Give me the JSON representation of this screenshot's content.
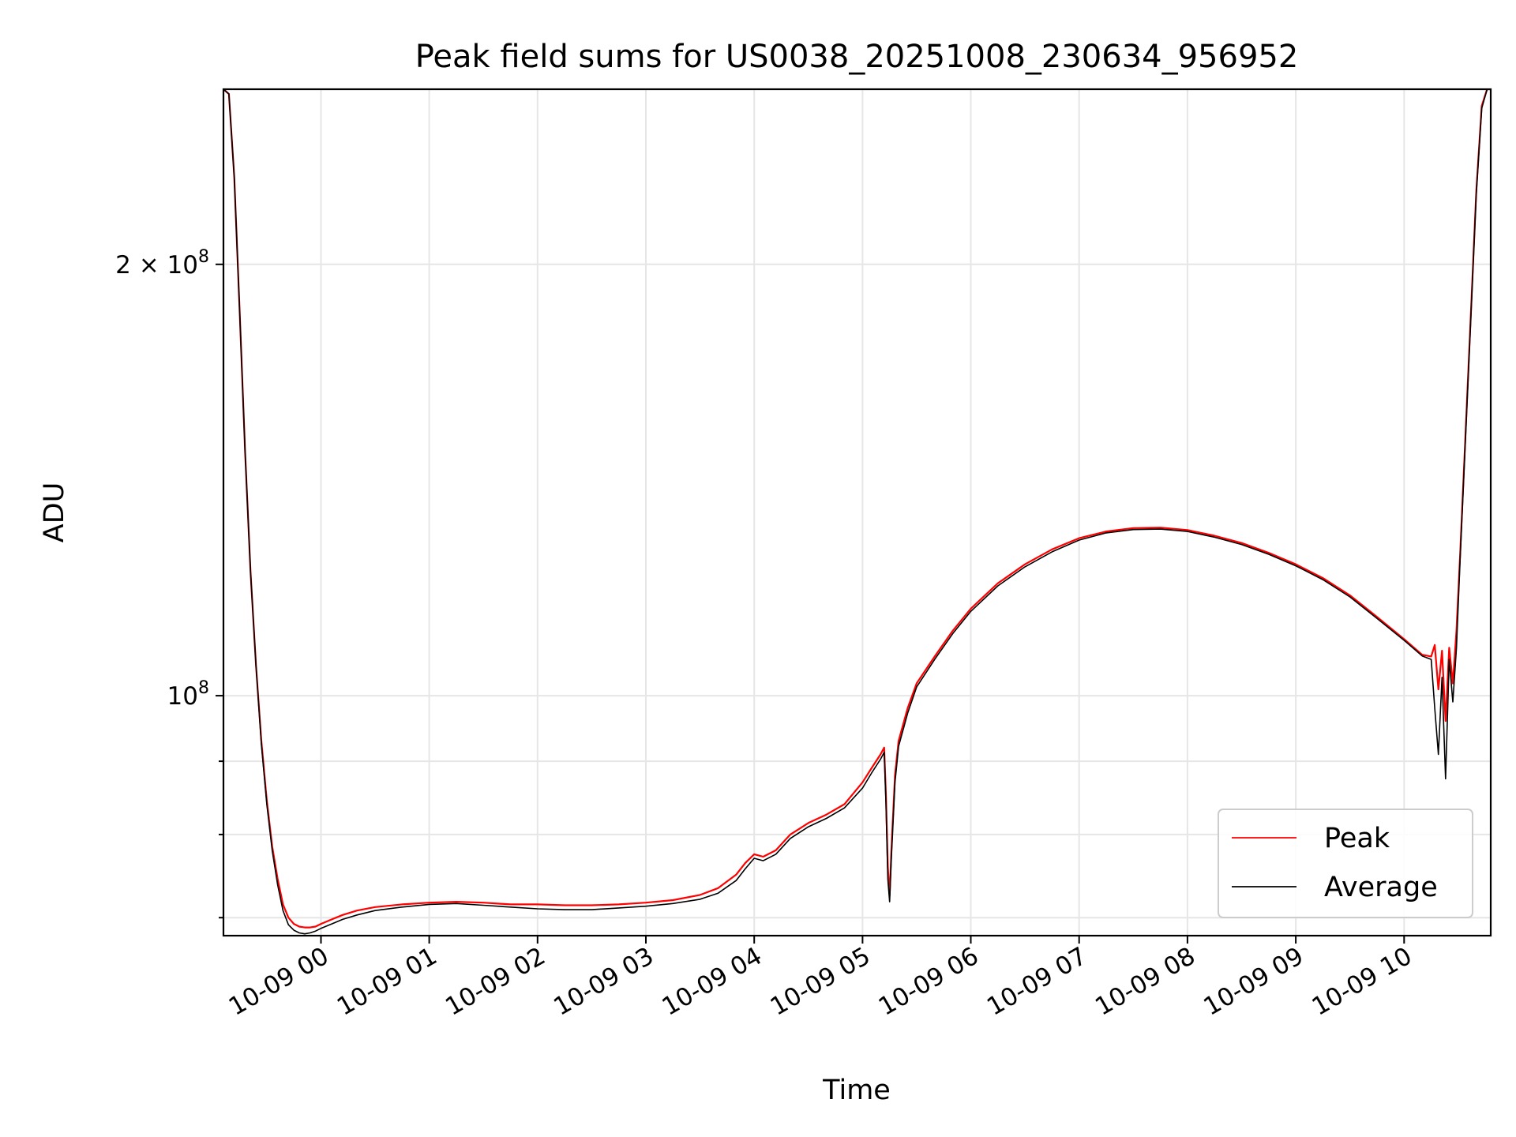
{
  "chart_data": {
    "type": "line",
    "title": "Peak field sums for US0038_20251008_230634_956952",
    "xlabel": "Time",
    "ylabel": "ADU",
    "y_scale": "log",
    "ylim": [
      68000000,
      265000000
    ],
    "xlim": [
      "2025-10-08 23:06",
      "2025-10-09 10:48"
    ],
    "grid": true,
    "legend_position": "bottom-right",
    "x_ticks": [
      "2025-10-09 00:00",
      "2025-10-09 01:00",
      "2025-10-09 02:00",
      "2025-10-09 03:00",
      "2025-10-09 04:00",
      "2025-10-09 05:00",
      "2025-10-09 06:00",
      "2025-10-09 07:00",
      "2025-10-09 08:00",
      "2025-10-09 09:00",
      "2025-10-09 10:00"
    ],
    "x_tick_labels": [
      "10-09 00",
      "10-09 01",
      "10-09 02",
      "10-09 03",
      "10-09 04",
      "10-09 05",
      "10-09 06",
      "10-09 07",
      "10-09 08",
      "10-09 09",
      "10-09 10"
    ],
    "y_ticks": [
      100000000,
      200000000
    ],
    "y_tick_labels": [
      {
        "base": "10",
        "exp": "8",
        "coef": ""
      },
      {
        "base": "10",
        "exp": "8",
        "coef": "2 × "
      }
    ],
    "y_minor_ticks": [
      70000000,
      80000000,
      90000000
    ],
    "x": [
      "2025-10-08 23:06",
      "2025-10-08 23:09",
      "2025-10-08 23:12",
      "2025-10-08 23:15",
      "2025-10-08 23:18",
      "2025-10-08 23:21",
      "2025-10-08 23:24",
      "2025-10-08 23:27",
      "2025-10-08 23:30",
      "2025-10-08 23:33",
      "2025-10-08 23:36",
      "2025-10-08 23:39",
      "2025-10-08 23:42",
      "2025-10-08 23:45",
      "2025-10-08 23:48",
      "2025-10-08 23:51",
      "2025-10-08 23:54",
      "2025-10-08 23:57",
      "2025-10-09 00:00",
      "2025-10-09 00:06",
      "2025-10-09 00:12",
      "2025-10-09 00:20",
      "2025-10-09 00:30",
      "2025-10-09 00:45",
      "2025-10-09 01:00",
      "2025-10-09 01:15",
      "2025-10-09 01:30",
      "2025-10-09 01:45",
      "2025-10-09 02:00",
      "2025-10-09 02:15",
      "2025-10-09 02:30",
      "2025-10-09 02:45",
      "2025-10-09 03:00",
      "2025-10-09 03:15",
      "2025-10-09 03:30",
      "2025-10-09 03:40",
      "2025-10-09 03:50",
      "2025-10-09 03:55",
      "2025-10-09 04:00",
      "2025-10-09 04:05",
      "2025-10-09 04:12",
      "2025-10-09 04:20",
      "2025-10-09 04:30",
      "2025-10-09 04:40",
      "2025-10-09 04:50",
      "2025-10-09 05:00",
      "2025-10-09 05:05",
      "2025-10-09 05:10",
      "2025-10-09 05:12",
      "2025-10-09 05:13",
      "2025-10-09 05:14",
      "2025-10-09 05:15",
      "2025-10-09 05:16",
      "2025-10-09 05:18",
      "2025-10-09 05:20",
      "2025-10-09 05:25",
      "2025-10-09 05:30",
      "2025-10-09 05:40",
      "2025-10-09 05:50",
      "2025-10-09 06:00",
      "2025-10-09 06:15",
      "2025-10-09 06:30",
      "2025-10-09 06:45",
      "2025-10-09 07:00",
      "2025-10-09 07:15",
      "2025-10-09 07:30",
      "2025-10-09 07:45",
      "2025-10-09 08:00",
      "2025-10-09 08:15",
      "2025-10-09 08:30",
      "2025-10-09 08:45",
      "2025-10-09 09:00",
      "2025-10-09 09:15",
      "2025-10-09 09:30",
      "2025-10-09 09:45",
      "2025-10-09 10:00",
      "2025-10-09 10:10",
      "2025-10-09 10:15",
      "2025-10-09 10:17",
      "2025-10-09 10:19",
      "2025-10-09 10:21",
      "2025-10-09 10:23",
      "2025-10-09 10:25",
      "2025-10-09 10:27",
      "2025-10-09 10:29",
      "2025-10-09 10:31",
      "2025-10-09 10:34",
      "2025-10-09 10:37",
      "2025-10-09 10:40",
      "2025-10-09 10:43",
      "2025-10-09 10:46",
      "2025-10-09 10:48"
    ],
    "series": [
      {
        "name": "Peak",
        "color": "#ff0000",
        "values": [
          265000000,
          263000000,
          230000000,
          185000000,
          148000000,
          122000000,
          105000000,
          93000000,
          84500000,
          78500000,
          74500000,
          71500000,
          70000000,
          69300000,
          69000000,
          68900000,
          68900000,
          69000000,
          69300000,
          69800000,
          70300000,
          70800000,
          71200000,
          71500000,
          71700000,
          71800000,
          71700000,
          71500000,
          71500000,
          71400000,
          71400000,
          71500000,
          71700000,
          72000000,
          72600000,
          73400000,
          75000000,
          76400000,
          77500000,
          77200000,
          78000000,
          80000000,
          81500000,
          82600000,
          84000000,
          87000000,
          89000000,
          91000000,
          92000000,
          85000000,
          76000000,
          72500000,
          78000000,
          88000000,
          93000000,
          98000000,
          102000000,
          106500000,
          111000000,
          115000000,
          119800000,
          123500000,
          126500000,
          128800000,
          130200000,
          130900000,
          131000000,
          130500000,
          129300000,
          127800000,
          125800000,
          123500000,
          120800000,
          117500000,
          113500000,
          109500000,
          106800000,
          106500000,
          108500000,
          101000000,
          107500000,
          96000000,
          108000000,
          102000000,
          111000000,
          125000000,
          152000000,
          185000000,
          225000000,
          258000000,
          265000000,
          265000000
        ]
      },
      {
        "name": "Average",
        "color": "#000000",
        "values": [
          265000000,
          263000000,
          230000000,
          185000000,
          148000000,
          122000000,
          105000000,
          92500000,
          84000000,
          78000000,
          73800000,
          70800000,
          69200000,
          68600000,
          68300000,
          68200000,
          68300000,
          68500000,
          68800000,
          69300000,
          69800000,
          70300000,
          70800000,
          71200000,
          71500000,
          71600000,
          71400000,
          71200000,
          71000000,
          70900000,
          70900000,
          71100000,
          71300000,
          71600000,
          72100000,
          72800000,
          74300000,
          75700000,
          77000000,
          76700000,
          77500000,
          79500000,
          81000000,
          82100000,
          83500000,
          86200000,
          88300000,
          90300000,
          91300000,
          84000000,
          74500000,
          71800000,
          77000000,
          87000000,
          92200000,
          97200000,
          101400000,
          106000000,
          110500000,
          114500000,
          119300000,
          123000000,
          126000000,
          128400000,
          129900000,
          130600000,
          130700000,
          130200000,
          129000000,
          127500000,
          125500000,
          123200000,
          120500000,
          117200000,
          113200000,
          109300000,
          106600000,
          106000000,
          98000000,
          91000000,
          103000000,
          87500000,
          106000000,
          99000000,
          108000000,
          124000000,
          151000000,
          184000000,
          224000000,
          257000000,
          265000000,
          265000000
        ]
      }
    ]
  }
}
